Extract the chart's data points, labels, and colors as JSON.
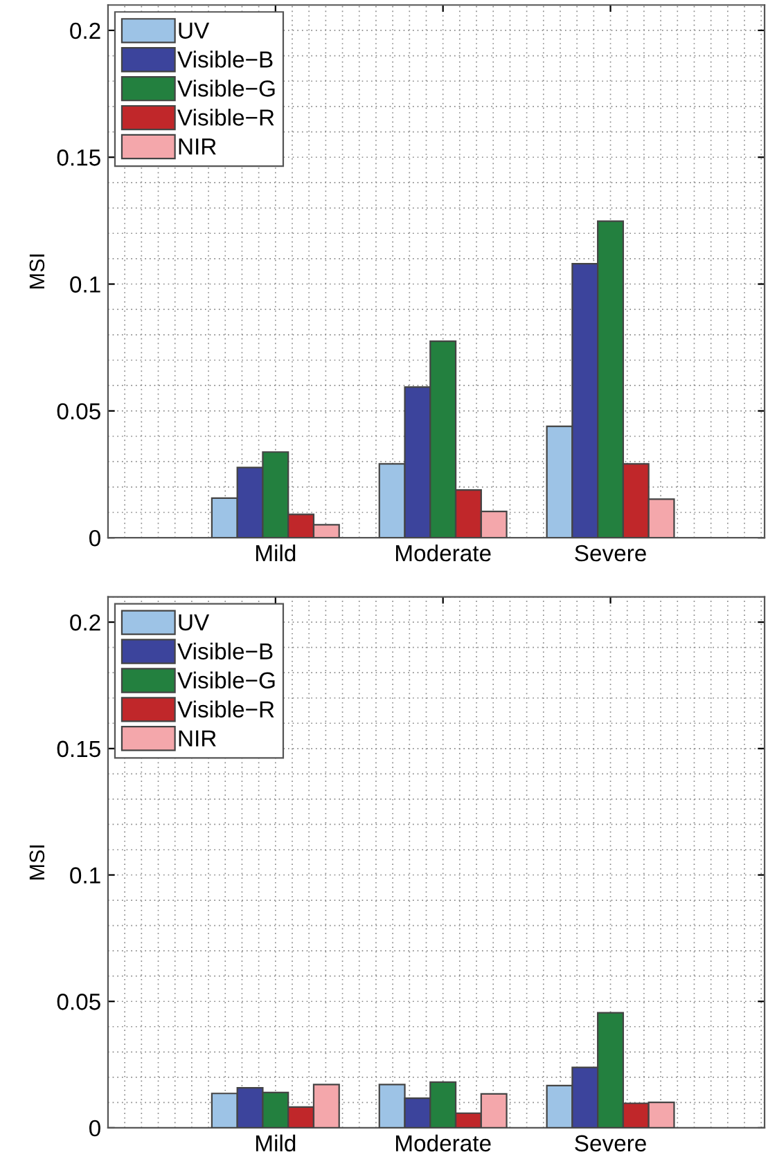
{
  "chart_data": [
    {
      "type": "bar",
      "ylabel": "MSI",
      "categories": [
        "Mild",
        "Moderate",
        "Severe"
      ],
      "ylim": [
        0,
        0.21
      ],
      "yticks": [
        0,
        0.05,
        0.1,
        0.15,
        0.2
      ],
      "grid": true,
      "legend": "top left",
      "series": [
        {
          "name": "UV",
          "color": "#9dc3e6",
          "values": [
            0.0156,
            0.0291,
            0.0439
          ]
        },
        {
          "name": "Visible−B",
          "color": "#3c449c",
          "values": [
            0.0277,
            0.0594,
            0.108
          ]
        },
        {
          "name": "Visible−G",
          "color": "#23803f",
          "values": [
            0.0338,
            0.0775,
            0.1248
          ]
        },
        {
          "name": "Visible−R",
          "color": "#c0272a",
          "values": [
            0.0092,
            0.0188,
            0.0291
          ]
        },
        {
          "name": "NIR",
          "color": "#f4a7ab",
          "values": [
            0.0051,
            0.0104,
            0.0152
          ]
        }
      ]
    },
    {
      "type": "bar",
      "ylabel": "MSI",
      "categories": [
        "Mild",
        "Moderate",
        "Severe"
      ],
      "ylim": [
        0,
        0.21
      ],
      "yticks": [
        0,
        0.05,
        0.1,
        0.15,
        0.2
      ],
      "grid": true,
      "legend": "top left",
      "series": [
        {
          "name": "UV",
          "color": "#9dc3e6",
          "values": [
            0.0136,
            0.0171,
            0.0167
          ]
        },
        {
          "name": "Visible−B",
          "color": "#3c449c",
          "values": [
            0.0158,
            0.0117,
            0.0239
          ]
        },
        {
          "name": "Visible−G",
          "color": "#23803f",
          "values": [
            0.014,
            0.0181,
            0.0455
          ]
        },
        {
          "name": "Visible−R",
          "color": "#c0272a",
          "values": [
            0.0082,
            0.0058,
            0.0097
          ]
        },
        {
          "name": "NIR",
          "color": "#f4a7ab",
          "values": [
            0.0171,
            0.0134,
            0.0101
          ]
        }
      ]
    }
  ]
}
